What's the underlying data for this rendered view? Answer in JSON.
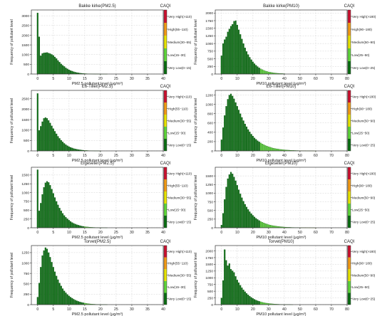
{
  "scale": {
    "title": "CAQI",
    "colors": [
      "#0a6e12",
      "#5ed63a",
      "#e8e400",
      "#f39b16",
      "#cc1130"
    ],
    "pm25_labels": [
      "Very Low(0−15)",
      "Low(15−30)",
      "Medium(30−55)",
      "High(55−110)",
      "Very High(>110)"
    ],
    "pm10_labels": [
      "Very Low(0−25)",
      "Low(25−50)",
      "Medium(50−90)",
      "High(90−180)",
      "Very High(>180)"
    ]
  },
  "chart_data": [
    {
      "type": "bar",
      "title": "Bakke kirke(PM2.5)",
      "xlabel": "PM2.5 pollutant level (μg/m³)",
      "ylabel": "Frequency of pollutant level",
      "xlim": [
        -2,
        40
      ],
      "ylim": [
        0,
        3300
      ],
      "xticks": [
        0,
        5,
        10,
        15,
        20,
        25,
        30,
        35,
        40
      ],
      "yticks": [
        0,
        500,
        1000,
        1500,
        2000,
        2500,
        3000
      ],
      "bin_width": 0.5,
      "grid": true,
      "legend": "right colorbar (CAQI)",
      "x": [
        0,
        0.5,
        1,
        1.5,
        2,
        2.5,
        3,
        3.5,
        4,
        4.5,
        5,
        5.5,
        6,
        6.5,
        7,
        7.5,
        8,
        8.5,
        9,
        9.5,
        10,
        10.5,
        11,
        11.5,
        12,
        12.5,
        13,
        13.5,
        14,
        14.5,
        15,
        15.5,
        16,
        16.5,
        17,
        17.5,
        18,
        18.5,
        19,
        19.5,
        20,
        20.5,
        21,
        21.5,
        22
      ],
      "values": [
        3150,
        1920,
        940,
        1060,
        1090,
        1100,
        1110,
        1080,
        1050,
        1010,
        960,
        880,
        800,
        700,
        610,
        520,
        450,
        390,
        320,
        270,
        220,
        180,
        150,
        120,
        95,
        75,
        60,
        48,
        38,
        30,
        24,
        19,
        15,
        12,
        10,
        8,
        6,
        5,
        4,
        3,
        3,
        2,
        2,
        1,
        1
      ]
    },
    {
      "type": "bar",
      "title": "Bakke kirke(PM10)",
      "xlabel": "PM10 pollutant level (μg/m³)",
      "ylabel": "Frequency of pollutant level",
      "xlim": [
        -4,
        80
      ],
      "ylim": [
        0,
        2100
      ],
      "xticks": [
        0,
        10,
        20,
        30,
        40,
        50,
        60,
        70,
        80
      ],
      "yticks": [
        0,
        250,
        500,
        750,
        1000,
        1250,
        1500,
        1750,
        2000
      ],
      "bin_width": 1,
      "grid": true,
      "legend": "right colorbar (CAQI)",
      "x": [
        0,
        1,
        2,
        3,
        4,
        5,
        6,
        7,
        8,
        9,
        10,
        11,
        12,
        13,
        14,
        15,
        16,
        17,
        18,
        19,
        20,
        21,
        22,
        23,
        24,
        25,
        26,
        27,
        28,
        29,
        30,
        31,
        32,
        33,
        34,
        35,
        36,
        37,
        38,
        39,
        40
      ],
      "values": [
        600,
        1000,
        1130,
        1220,
        1380,
        1480,
        1570,
        1630,
        1730,
        1750,
        1610,
        1450,
        1300,
        1150,
        1000,
        860,
        740,
        640,
        550,
        470,
        400,
        340,
        290,
        245,
        205,
        170,
        145,
        120,
        100,
        85,
        70,
        60,
        50,
        42,
        35,
        29,
        24,
        20,
        17,
        14,
        12
      ]
    },
    {
      "type": "bar",
      "title": "E6-Tiller(PM2.5)",
      "xlabel": "PM2.5 pollutant level (μg/m³)",
      "ylabel": "Frequency of pollutant level",
      "xlim": [
        -2,
        40
      ],
      "ylim": [
        0,
        2900
      ],
      "xticks": [
        0,
        5,
        10,
        15,
        20,
        25,
        30,
        35,
        40
      ],
      "yticks": [
        0,
        500,
        1000,
        1500,
        2000,
        2500
      ],
      "bin_width": 0.5,
      "grid": true,
      "legend": "right colorbar (CAQI)",
      "x": [
        0,
        0.5,
        1,
        1.5,
        2,
        2.5,
        3,
        3.5,
        4,
        4.5,
        5,
        5.5,
        6,
        6.5,
        7,
        7.5,
        8,
        8.5,
        9,
        9.5,
        10,
        10.5,
        11,
        11.5,
        12,
        12.5,
        13,
        13.5,
        14,
        14.5,
        15,
        15.5,
        16,
        16.5,
        17,
        17.5,
        18,
        18.5,
        19,
        19.5,
        20
      ],
      "values": [
        2750,
        980,
        1180,
        1400,
        1560,
        1600,
        1560,
        1460,
        1340,
        1200,
        1070,
        940,
        820,
        700,
        600,
        510,
        430,
        360,
        300,
        250,
        205,
        170,
        140,
        115,
        95,
        78,
        64,
        52,
        42,
        34,
        27,
        22,
        18,
        14,
        11,
        9,
        7,
        5,
        4,
        3,
        2
      ]
    },
    {
      "type": "bar",
      "title": "E6-Tiller(PM10)",
      "xlabel": "PM10 pollutant level (μg/m³)",
      "ylabel": "Frequency of pollutant level",
      "xlim": [
        -4,
        80
      ],
      "ylim": [
        0,
        1300
      ],
      "xticks": [
        0,
        10,
        20,
        30,
        40,
        50,
        60,
        70,
        80
      ],
      "yticks": [
        0,
        200,
        400,
        600,
        800,
        1000,
        1200
      ],
      "bin_width": 1,
      "grid": true,
      "legend": "right colorbar (CAQI)",
      "x": [
        0,
        1,
        2,
        3,
        4,
        5,
        6,
        7,
        8,
        9,
        10,
        11,
        12,
        13,
        14,
        15,
        16,
        17,
        18,
        19,
        20,
        21,
        22,
        23,
        24,
        25,
        26,
        27,
        28,
        29,
        30,
        31,
        32,
        33,
        34,
        35,
        36,
        37,
        38,
        39,
        40,
        41,
        42,
        43,
        44,
        45,
        46,
        47,
        48,
        49,
        50,
        51,
        52,
        53,
        54,
        55,
        56,
        57,
        58,
        59,
        60
      ],
      "values": [
        240,
        500,
        760,
        960,
        1110,
        1200,
        1225,
        1180,
        1120,
        1040,
        960,
        880,
        800,
        720,
        650,
        580,
        520,
        460,
        410,
        360,
        320,
        280,
        250,
        220,
        195,
        170,
        150,
        132,
        116,
        102,
        90,
        79,
        69,
        60,
        53,
        46,
        40,
        35,
        31,
        27,
        24,
        21,
        18,
        16,
        14,
        12,
        10,
        9,
        8,
        7,
        6,
        5,
        4,
        4,
        3,
        3,
        2,
        2,
        2,
        1,
        1
      ]
    },
    {
      "type": "bar",
      "title": "Elgeseter(PM2.5)",
      "xlabel": "PM2.5 pollutant level (μg/m³)",
      "ylabel": "Frequency of pollutant level",
      "xlim": [
        -2,
        40
      ],
      "ylim": [
        0,
        1720
      ],
      "xticks": [
        0,
        5,
        10,
        15,
        20,
        25,
        30,
        35,
        40
      ],
      "yticks": [
        0,
        250,
        500,
        750,
        1000,
        1250,
        1500
      ],
      "bin_width": 0.5,
      "grid": true,
      "legend": "right colorbar (CAQI)",
      "x": [
        0,
        0.5,
        1,
        1.5,
        2,
        2.5,
        3,
        3.5,
        4,
        4.5,
        5,
        5.5,
        6,
        6.5,
        7,
        7.5,
        8,
        8.5,
        9,
        9.5,
        10,
        10.5,
        11,
        11.5,
        12,
        12.5,
        13,
        13.5,
        14,
        14.5,
        15,
        15.5,
        16,
        16.5,
        17,
        17.5,
        18,
        18.5,
        19,
        19.5,
        20,
        20.5,
        21,
        21.5,
        22
      ],
      "values": [
        1650,
        480,
        700,
        950,
        1150,
        1280,
        1320,
        1290,
        1210,
        1100,
        980,
        860,
        750,
        650,
        560,
        480,
        410,
        350,
        300,
        255,
        215,
        180,
        150,
        125,
        105,
        88,
        73,
        61,
        50,
        41,
        34,
        28,
        23,
        19,
        15,
        12,
        10,
        8,
        6,
        5,
        4,
        3,
        2,
        2,
        1
      ]
    },
    {
      "type": "bar",
      "title": "Elgeseter(PM10)",
      "xlabel": "PM10 pollutant level (μg/m³)",
      "ylabel": "Frequency of pollutant level",
      "xlim": [
        -4,
        80
      ],
      "ylim": [
        0,
        1750
      ],
      "xticks": [
        0,
        10,
        20,
        30,
        40,
        50,
        60,
        70,
        80
      ],
      "yticks": [
        0,
        250,
        500,
        750,
        1000,
        1250,
        1500
      ],
      "bin_width": 1,
      "grid": true,
      "legend": "right colorbar (CAQI)",
      "x": [
        0,
        1,
        2,
        3,
        4,
        5,
        6,
        7,
        8,
        9,
        10,
        11,
        12,
        13,
        14,
        15,
        16,
        17,
        18,
        19,
        20,
        21,
        22,
        23,
        24,
        25,
        26,
        27,
        28,
        29,
        30,
        31,
        32,
        33,
        34,
        35,
        36,
        37,
        38,
        39,
        40,
        41,
        42,
        43,
        44,
        45,
        46,
        47,
        48,
        49,
        50,
        51,
        52,
        53,
        54,
        55,
        56,
        57,
        58,
        59,
        60
      ],
      "values": [
        80,
        420,
        820,
        1180,
        1420,
        1540,
        1610,
        1560,
        1470,
        1360,
        1230,
        1100,
        980,
        870,
        770,
        680,
        600,
        530,
        465,
        410,
        360,
        315,
        275,
        240,
        210,
        183,
        160,
        140,
        122,
        106,
        92,
        80,
        70,
        61,
        53,
        46,
        40,
        35,
        30,
        26,
        22,
        19,
        16,
        14,
        12,
        10,
        9,
        8,
        7,
        6,
        5,
        4,
        4,
        3,
        3,
        2,
        2,
        2,
        1,
        1,
        1
      ]
    },
    {
      "type": "bar",
      "title": "Torvet(PM2.5)",
      "xlabel": "PM2.5 pollutant level (μg/m³)",
      "ylabel": "Frequency of pollutant level",
      "xlim": [
        -2,
        40
      ],
      "ylim": [
        0,
        1420
      ],
      "xticks": [
        0,
        5,
        10,
        15,
        20,
        25,
        30,
        35,
        40
      ],
      "yticks": [
        0,
        250,
        500,
        750,
        1000,
        1250
      ],
      "bin_width": 0.5,
      "grid": true,
      "legend": "right colorbar (CAQI)",
      "x": [
        0,
        0.5,
        1,
        1.5,
        2,
        2.5,
        3,
        3.5,
        4,
        4.5,
        5,
        5.5,
        6,
        6.5,
        7,
        7.5,
        8,
        8.5,
        9,
        9.5,
        10,
        10.5,
        11,
        11.5,
        12,
        12.5,
        13,
        13.5,
        14,
        14.5,
        15,
        15.5,
        16,
        16.5,
        17,
        17.5,
        18,
        18.5,
        19,
        19.5,
        20,
        20.5,
        21,
        21.5,
        22
      ],
      "values": [
        180,
        520,
        900,
        1180,
        1300,
        1370,
        1340,
        1250,
        1140,
        1020,
        900,
        790,
        690,
        600,
        520,
        450,
        385,
        330,
        285,
        245,
        210,
        180,
        155,
        130,
        110,
        93,
        78,
        65,
        54,
        45,
        37,
        30,
        25,
        20,
        16,
        13,
        10,
        8,
        6,
        5,
        4,
        3,
        2,
        2,
        1
      ]
    },
    {
      "type": "bar",
      "title": "Torvet(PM10)",
      "xlabel": "PM10 pollutant level (μg/m³)",
      "ylabel": "Frequency of pollutant level",
      "xlim": [
        -4,
        80
      ],
      "ylim": [
        0,
        2200
      ],
      "xticks": [
        0,
        10,
        20,
        30,
        40,
        50,
        60,
        70,
        80
      ],
      "yticks": [
        0,
        250,
        500,
        750,
        1000,
        1250,
        1500,
        1750,
        2000
      ],
      "bin_width": 1,
      "grid": true,
      "legend": "right colorbar (CAQI)",
      "x": [
        0,
        1,
        2,
        3,
        4,
        5,
        6,
        7,
        8,
        9,
        10,
        11,
        12,
        13,
        14,
        15,
        16,
        17,
        18,
        19,
        20,
        21,
        22,
        23,
        24,
        25,
        26,
        27,
        28,
        29,
        30,
        31,
        32,
        33,
        34,
        35,
        36,
        37,
        38,
        39,
        40,
        41,
        42,
        43,
        44,
        45
      ],
      "values": [
        250,
        900,
        2050,
        1650,
        1450,
        1530,
        1320,
        1260,
        1200,
        1050,
        920,
        820,
        720,
        630,
        550,
        480,
        420,
        365,
        315,
        270,
        232,
        198,
        170,
        145,
        124,
        106,
        90,
        76,
        64,
        54,
        45,
        38,
        32,
        27,
        22,
        18,
        15,
        12,
        10,
        8,
        7,
        5,
        4,
        3,
        2,
        1
      ]
    }
  ]
}
